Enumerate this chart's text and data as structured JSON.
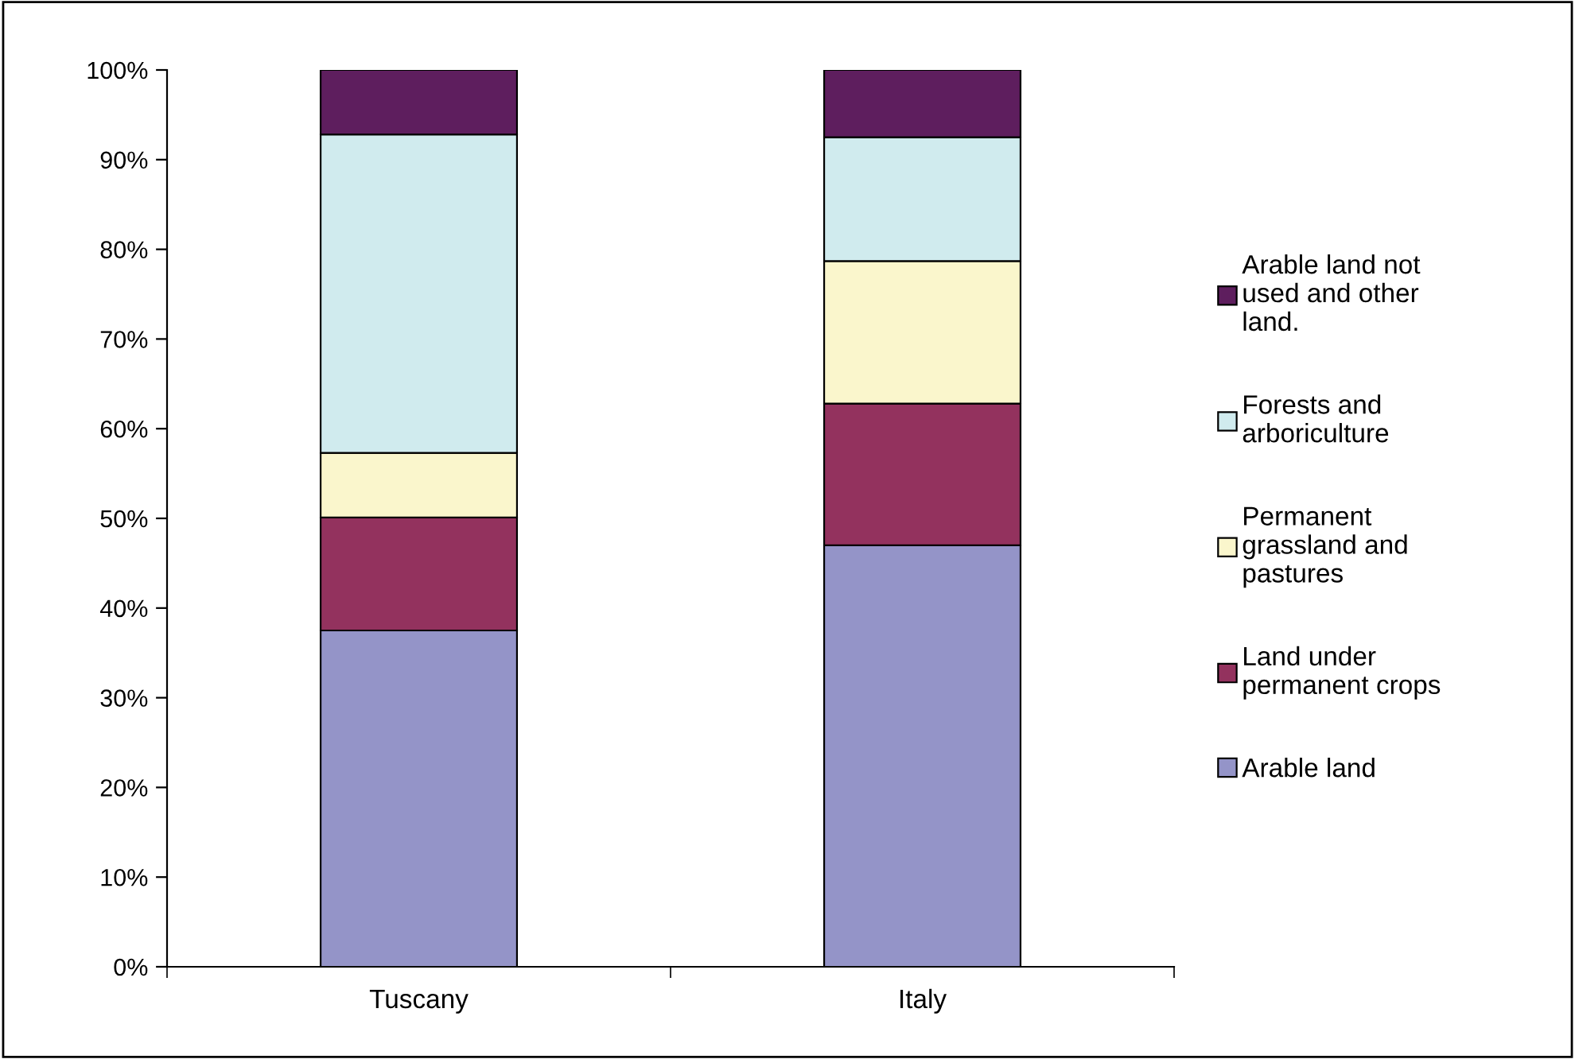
{
  "chart_data": {
    "type": "bar",
    "stacked": true,
    "categories": [
      "Tuscany",
      "Italy"
    ],
    "series": [
      {
        "name": "Arable land",
        "color": "#9494c8",
        "values": [
          37.5,
          47.0
        ]
      },
      {
        "name": "Land under permanent crops",
        "color": "#93325e",
        "values": [
          12.6,
          15.8
        ]
      },
      {
        "name": "Permanent grassland and pastures",
        "color": "#faf6cc",
        "values": [
          7.2,
          15.9
        ]
      },
      {
        "name": "Forests and arboriculture",
        "color": "#d0ebee",
        "values": [
          35.5,
          13.8
        ]
      },
      {
        "name": "Arable land not used and other land.",
        "color": "#5e1e5e",
        "values": [
          7.2,
          7.5
        ]
      }
    ],
    "ylim": [
      0,
      100
    ],
    "yticks": [
      {
        "value": 0,
        "label": "0%"
      },
      {
        "value": 10,
        "label": "10%"
      },
      {
        "value": 20,
        "label": "20%"
      },
      {
        "value": 30,
        "label": "30%"
      },
      {
        "value": 40,
        "label": "40%"
      },
      {
        "value": 50,
        "label": "50%"
      },
      {
        "value": 60,
        "label": "60%"
      },
      {
        "value": 70,
        "label": "70%"
      },
      {
        "value": 80,
        "label": "80%"
      },
      {
        "value": 90,
        "label": "90%"
      },
      {
        "value": 100,
        "label": "100%"
      }
    ],
    "grid": false,
    "legend": "right"
  }
}
